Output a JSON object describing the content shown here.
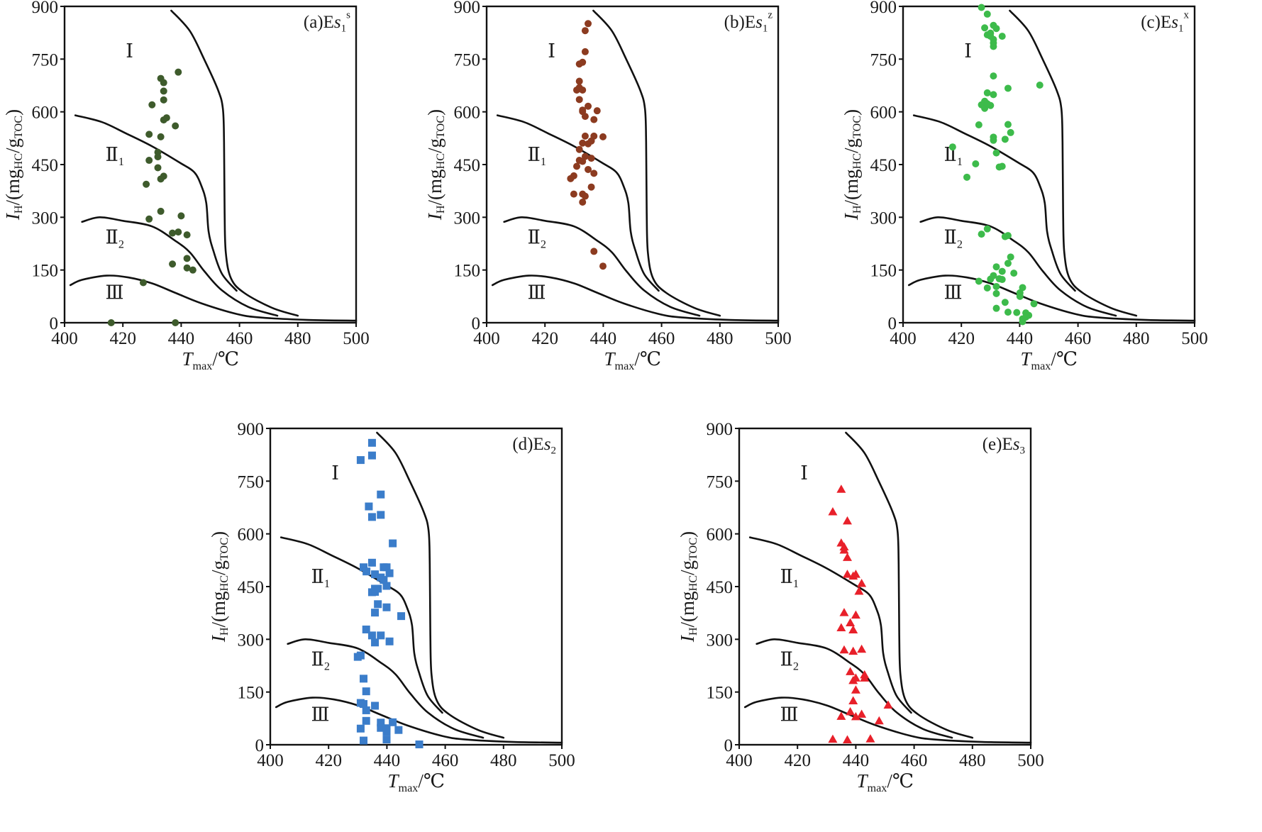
{
  "figure": {
    "shared_axes": {
      "x_label": [
        {
          "t": "T",
          "italic": true
        },
        {
          "t": "max",
          "sub": true
        },
        {
          "t": "/℃"
        }
      ],
      "y_label": [
        {
          "t": "I",
          "italic": true
        },
        {
          "t": "H",
          "sub": true
        },
        {
          "t": "/(mg"
        },
        {
          "t": "HC",
          "sub": true
        },
        {
          "t": "/g"
        },
        {
          "t": "TOC",
          "sub": true
        },
        {
          "t": ")"
        }
      ],
      "xlim": [
        400,
        500
      ],
      "ylim": [
        0,
        900
      ],
      "xticks": [
        "400",
        "420",
        "440",
        "460",
        "480",
        "500"
      ],
      "yticks": [
        "0",
        "150",
        "300",
        "450",
        "600",
        "750",
        "900"
      ]
    },
    "zone_labels": [
      {
        "id": "I",
        "parts": [
          {
            "t": "Ⅰ"
          }
        ]
      },
      {
        "id": "II1",
        "parts": [
          {
            "t": "Ⅱ"
          },
          {
            "t": "1",
            "sub": true
          }
        ]
      },
      {
        "id": "II2",
        "parts": [
          {
            "t": "Ⅱ"
          },
          {
            "t": "2",
            "sub": true
          }
        ]
      },
      {
        "id": "III",
        "parts": [
          {
            "t": "Ⅲ"
          }
        ]
      }
    ],
    "classification_curves": [
      {
        "id": "I-upper",
        "points": [
          [
            436.6,
            888
          ],
          [
            442.9,
            831
          ],
          [
            447.8,
            751
          ],
          [
            452.6,
            663
          ],
          [
            454.3,
            609
          ],
          [
            454.7,
            515
          ],
          [
            454.9,
            314
          ],
          [
            455.3,
            200
          ],
          [
            457.1,
            126
          ],
          [
            461.6,
            85
          ],
          [
            471.3,
            42
          ],
          [
            480,
            20
          ]
        ]
      },
      {
        "id": "I-II1",
        "points": [
          [
            403.7,
            590
          ],
          [
            412.8,
            571
          ],
          [
            421,
            539
          ],
          [
            430,
            502
          ],
          [
            439.6,
            455
          ],
          [
            444.5,
            428
          ],
          [
            447,
            388
          ],
          [
            448.6,
            341
          ],
          [
            449.4,
            260
          ],
          [
            451,
            206
          ],
          [
            454,
            139
          ],
          [
            459,
            91
          ]
        ]
      },
      {
        "id": "II1-II2",
        "points": [
          [
            406,
            287
          ],
          [
            412,
            300
          ],
          [
            420,
            290
          ],
          [
            430,
            274
          ],
          [
            438,
            233
          ],
          [
            443,
            200
          ],
          [
            448,
            146
          ],
          [
            454,
            92
          ],
          [
            463,
            45
          ],
          [
            473,
            20
          ]
        ]
      },
      {
        "id": "II2-III",
        "points": [
          [
            402,
            107
          ],
          [
            406,
            122
          ],
          [
            414.5,
            134
          ],
          [
            421.8,
            129
          ],
          [
            430,
            112
          ],
          [
            438,
            85
          ],
          [
            447,
            55
          ],
          [
            459,
            25
          ],
          [
            467,
            15
          ],
          [
            483.5,
            8
          ],
          [
            500,
            6
          ]
        ]
      }
    ]
  },
  "chart_data": [
    {
      "type": "scatter",
      "panel": "a",
      "marker": "circle",
      "color": "#3e5b2c",
      "title": [
        {
          "t": "(a)E"
        },
        {
          "t": "s",
          "italic": true
        },
        {
          "t": "1",
          "sub": true
        },
        {
          "t": "s",
          "sup": true
        }
      ],
      "points": [
        [
          439,
          713
        ],
        [
          433,
          695
        ],
        [
          434,
          683
        ],
        [
          434,
          659
        ],
        [
          434,
          634
        ],
        [
          430,
          620
        ],
        [
          435,
          583
        ],
        [
          434,
          577
        ],
        [
          438,
          560
        ],
        [
          429,
          536
        ],
        [
          433,
          529
        ],
        [
          432,
          485
        ],
        [
          432,
          472
        ],
        [
          429,
          462
        ],
        [
          432,
          441
        ],
        [
          434,
          417
        ],
        [
          433,
          409
        ],
        [
          428,
          394
        ],
        [
          433,
          317
        ],
        [
          440,
          304
        ],
        [
          429,
          295
        ],
        [
          437,
          255
        ],
        [
          439,
          258
        ],
        [
          442,
          250
        ],
        [
          442,
          183
        ],
        [
          437,
          167
        ],
        [
          442,
          156
        ],
        [
          444,
          150
        ],
        [
          427,
          114
        ],
        [
          416,
          0
        ],
        [
          438,
          0
        ]
      ]
    },
    {
      "type": "scatter",
      "panel": "b",
      "marker": "circle",
      "color": "#8c3b20",
      "title": [
        {
          "t": "(b)E"
        },
        {
          "t": "s",
          "italic": true
        },
        {
          "t": "1",
          "sub": true
        },
        {
          "t": "z",
          "sup": true
        }
      ],
      "points": [
        [
          434.8,
          851
        ],
        [
          433.8,
          831
        ],
        [
          433.8,
          771
        ],
        [
          431.8,
          736
        ],
        [
          432.9,
          741
        ],
        [
          431.8,
          687
        ],
        [
          430.9,
          662
        ],
        [
          431.8,
          669
        ],
        [
          432.9,
          662
        ],
        [
          431.8,
          635
        ],
        [
          434.8,
          616
        ],
        [
          432.9,
          605
        ],
        [
          432.9,
          601
        ],
        [
          437.9,
          603
        ],
        [
          433.8,
          587
        ],
        [
          436.8,
          578
        ],
        [
          433.8,
          531
        ],
        [
          436.8,
          531
        ],
        [
          439.9,
          529
        ],
        [
          432.9,
          511
        ],
        [
          434.8,
          509
        ],
        [
          435.9,
          517
        ],
        [
          431.8,
          493
        ],
        [
          433.8,
          473
        ],
        [
          435.9,
          468
        ],
        [
          431.8,
          462
        ],
        [
          432.9,
          459
        ],
        [
          430.9,
          445
        ],
        [
          434.8,
          436
        ],
        [
          436.8,
          425
        ],
        [
          429.9,
          418
        ],
        [
          428.8,
          410
        ],
        [
          435.9,
          386
        ],
        [
          429.9,
          366
        ],
        [
          432.9,
          366
        ],
        [
          433.8,
          360
        ],
        [
          432.9,
          343
        ],
        [
          436.8,
          203
        ],
        [
          439.9,
          161
        ]
      ]
    },
    {
      "type": "scatter",
      "panel": "c",
      "marker": "circle",
      "color": "#3dbb4b",
      "title": [
        {
          "t": "(c)E"
        },
        {
          "t": "s",
          "italic": true
        },
        {
          "t": "1",
          "sub": true
        },
        {
          "t": "x",
          "sup": true
        }
      ],
      "points": [
        [
          426.9,
          897
        ],
        [
          428.9,
          878
        ],
        [
          431,
          846
        ],
        [
          432,
          837
        ],
        [
          428,
          839
        ],
        [
          428.9,
          819
        ],
        [
          430,
          824
        ],
        [
          431,
          806
        ],
        [
          430,
          815
        ],
        [
          431,
          796
        ],
        [
          431,
          786
        ],
        [
          434,
          815
        ],
        [
          431,
          702
        ],
        [
          446.9,
          676
        ],
        [
          436,
          667
        ],
        [
          428.9,
          654
        ],
        [
          431,
          649
        ],
        [
          428,
          630
        ],
        [
          426.9,
          620
        ],
        [
          428,
          610
        ],
        [
          430,
          618
        ],
        [
          428.9,
          623
        ],
        [
          426,
          563
        ],
        [
          436,
          564
        ],
        [
          436.9,
          541
        ],
        [
          431,
          528
        ],
        [
          431,
          519
        ],
        [
          435,
          522
        ],
        [
          417,
          500
        ],
        [
          432,
          483
        ],
        [
          424.9,
          452
        ],
        [
          433,
          443
        ],
        [
          434,
          445
        ],
        [
          421.9,
          414
        ],
        [
          428.9,
          267
        ],
        [
          426.9,
          252
        ],
        [
          435,
          245
        ],
        [
          436,
          248
        ],
        [
          436.9,
          187
        ],
        [
          436,
          169
        ],
        [
          432,
          159
        ],
        [
          434,
          146
        ],
        [
          438,
          141
        ],
        [
          431,
          134
        ],
        [
          430,
          124
        ],
        [
          433,
          125
        ],
        [
          434,
          123
        ],
        [
          426,
          118
        ],
        [
          428.9,
          99
        ],
        [
          432,
          103
        ],
        [
          432,
          83
        ],
        [
          441,
          100
        ],
        [
          440.1,
          85
        ],
        [
          440.1,
          75
        ],
        [
          435,
          58
        ],
        [
          444.9,
          54
        ],
        [
          432,
          41
        ],
        [
          436,
          30
        ],
        [
          439,
          29
        ],
        [
          442.1,
          28
        ],
        [
          443.1,
          21
        ],
        [
          441,
          11
        ],
        [
          442.1,
          16
        ],
        [
          441,
          3
        ]
      ]
    },
    {
      "type": "scatter",
      "panel": "d",
      "marker": "square",
      "color": "#3b7dca",
      "title": [
        {
          "t": "(d)E"
        },
        {
          "t": "s",
          "italic": true
        },
        {
          "t": "2",
          "sub": true
        }
      ],
      "points": [
        [
          434.9,
          859
        ],
        [
          434.9,
          823
        ],
        [
          431,
          810
        ],
        [
          437.9,
          712
        ],
        [
          433.8,
          678
        ],
        [
          437.9,
          654
        ],
        [
          434.9,
          648
        ],
        [
          442,
          573
        ],
        [
          434.9,
          518
        ],
        [
          432,
          505
        ],
        [
          433,
          493
        ],
        [
          438.9,
          505
        ],
        [
          439.9,
          505
        ],
        [
          440.9,
          488
        ],
        [
          435.9,
          485
        ],
        [
          437.9,
          476
        ],
        [
          438.9,
          469
        ],
        [
          439.9,
          452
        ],
        [
          434.9,
          434
        ],
        [
          435.9,
          435
        ],
        [
          436.9,
          444
        ],
        [
          435.9,
          444
        ],
        [
          436.9,
          400
        ],
        [
          439.9,
          391
        ],
        [
          435.9,
          376
        ],
        [
          444.9,
          366
        ],
        [
          432.9,
          328
        ],
        [
          434.9,
          311
        ],
        [
          437.9,
          311
        ],
        [
          435.9,
          291
        ],
        [
          440.9,
          294
        ],
        [
          430,
          250
        ],
        [
          431,
          254
        ],
        [
          432,
          188
        ],
        [
          432.9,
          152
        ],
        [
          431,
          119
        ],
        [
          432,
          116
        ],
        [
          435.9,
          111
        ],
        [
          432.9,
          98
        ],
        [
          432.9,
          68
        ],
        [
          437.9,
          63
        ],
        [
          442,
          64
        ],
        [
          437.9,
          48
        ],
        [
          439.9,
          47
        ],
        [
          431,
          46
        ],
        [
          444,
          42
        ],
        [
          439.9,
          37
        ],
        [
          432,
          12
        ],
        [
          439.9,
          15
        ],
        [
          451.1,
          1
        ]
      ]
    },
    {
      "type": "scatter",
      "panel": "e",
      "marker": "triangle",
      "color": "#e8202a",
      "title": [
        {
          "t": "(e)E"
        },
        {
          "t": "s",
          "italic": true
        },
        {
          "t": "3",
          "sub": true
        }
      ],
      "points": [
        [
          435,
          727
        ],
        [
          432.1,
          663
        ],
        [
          437.1,
          637
        ],
        [
          435,
          574
        ],
        [
          436,
          563
        ],
        [
          436,
          554
        ],
        [
          437.1,
          533
        ],
        [
          437.1,
          485
        ],
        [
          439.1,
          480
        ],
        [
          440,
          485
        ],
        [
          442,
          459
        ],
        [
          441.1,
          437
        ],
        [
          436,
          376
        ],
        [
          440,
          369
        ],
        [
          438.1,
          347
        ],
        [
          435,
          333
        ],
        [
          439.1,
          327
        ],
        [
          436,
          270
        ],
        [
          439.1,
          266
        ],
        [
          442,
          272
        ],
        [
          438.1,
          208
        ],
        [
          443,
          199
        ],
        [
          443,
          190
        ],
        [
          440,
          190
        ],
        [
          439.1,
          183
        ],
        [
          440,
          156
        ],
        [
          439.1,
          125
        ],
        [
          451.1,
          113
        ],
        [
          438.1,
          94
        ],
        [
          442,
          87
        ],
        [
          435,
          81
        ],
        [
          440,
          80
        ],
        [
          448,
          68
        ],
        [
          432.1,
          16
        ],
        [
          437.1,
          14
        ],
        [
          445,
          17
        ]
      ]
    }
  ]
}
